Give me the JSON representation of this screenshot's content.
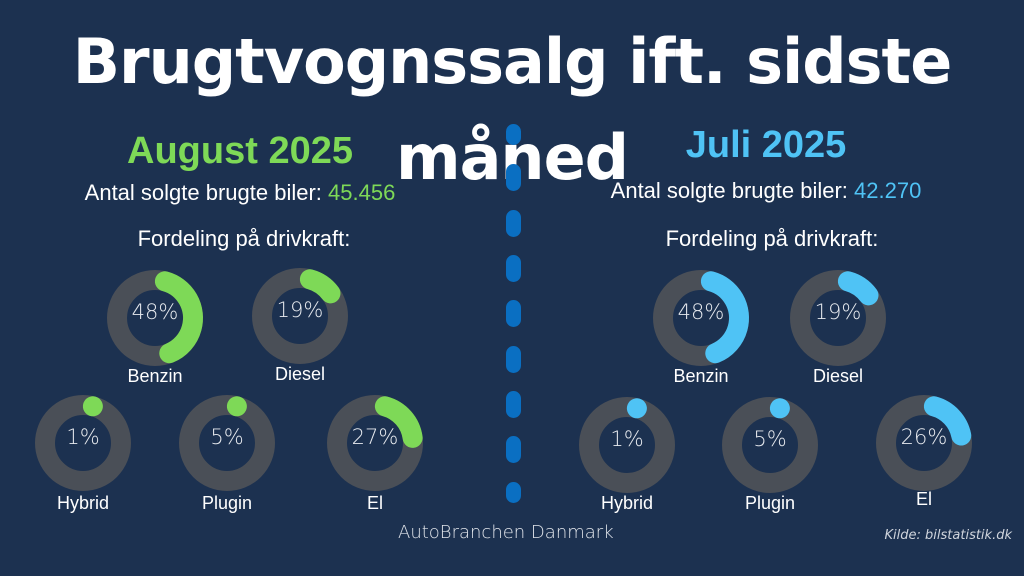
{
  "title": "Brugtvognssalg ift. sidste måned",
  "footer": "AutoBranchen Danmark",
  "source": "Kilde: bilstatistik.dk",
  "colors": {
    "background": "#1c3150",
    "august": "#7ed957",
    "juli": "#4fc3f5",
    "track": "#4a4f57",
    "divider": "#0a6fc2"
  },
  "chart_data": [
    {
      "type": "donut",
      "panel": "August 2025",
      "title": "August 2025",
      "count_label": "Antal solgte brugte biler:",
      "count_value": "45.456",
      "subtitle": "Fordeling på drivkraft:",
      "categories": [
        "Benzin",
        "Diesel",
        "Hybrid",
        "Plugin",
        "El"
      ],
      "values": [
        48,
        19,
        1,
        5,
        27
      ],
      "labels": [
        "48%",
        "19%",
        "1%",
        "5%",
        "27%"
      ],
      "color": "#7ed957"
    },
    {
      "type": "donut",
      "panel": "Juli 2025",
      "title": "Juli 2025",
      "count_label": "Antal solgte brugte biler:",
      "count_value": "42.270",
      "subtitle": "Fordeling på drivkraft:",
      "categories": [
        "Benzin",
        "Diesel",
        "Hybrid",
        "Plugin",
        "El"
      ],
      "values": [
        48,
        19,
        1,
        5,
        26
      ],
      "labels": [
        "48%",
        "19%",
        "1%",
        "5%",
        "26%"
      ],
      "color": "#4fc3f5"
    }
  ]
}
